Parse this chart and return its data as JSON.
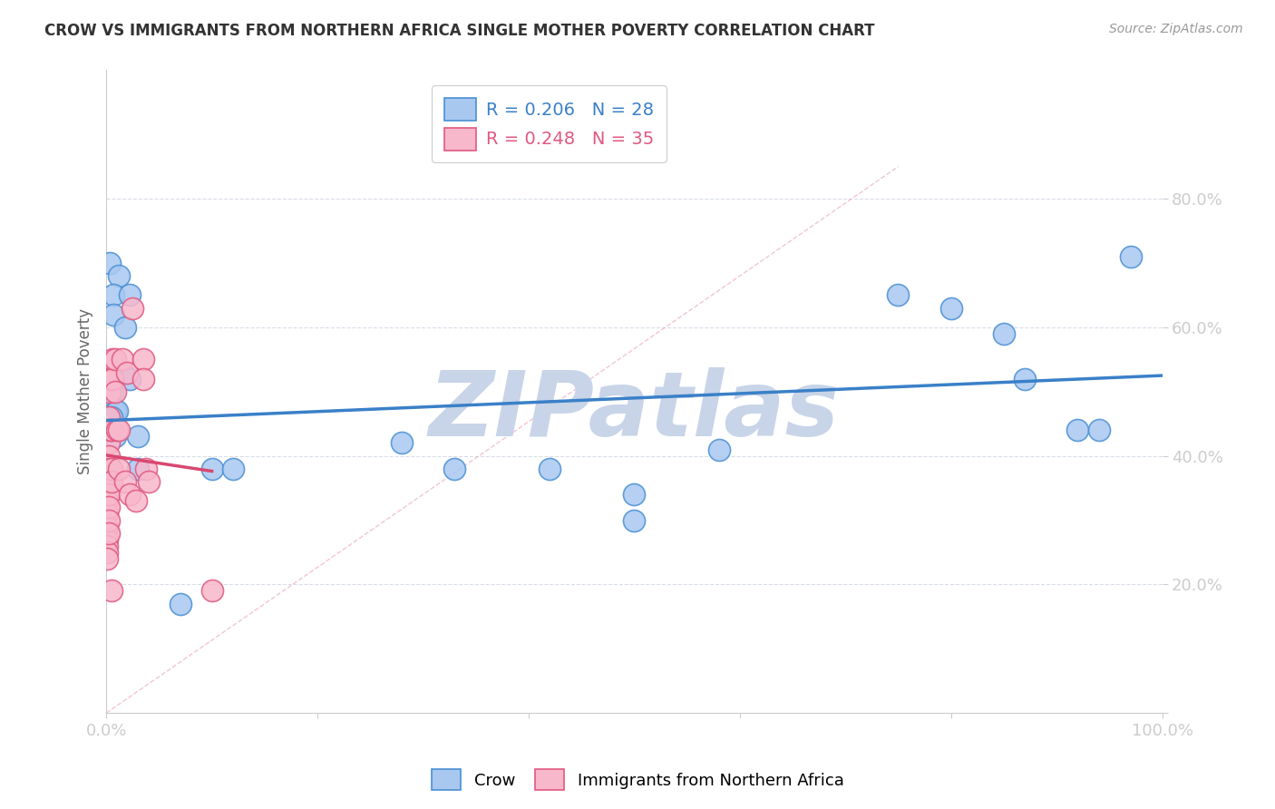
{
  "title": "CROW VS IMMIGRANTS FROM NORTHERN AFRICA SINGLE MOTHER POVERTY CORRELATION CHART",
  "source": "Source: ZipAtlas.com",
  "ylabel": "Single Mother Poverty",
  "xlim": [
    0,
    1.0
  ],
  "ylim": [
    0,
    1.0
  ],
  "background_color": "#ffffff",
  "grid_color": "#d8dce8",
  "watermark": "ZIPatlas",
  "watermark_color": "#c8d4e8",
  "crow_color": "#a8c8f0",
  "crow_edge_color": "#4a8fd4",
  "immigrants_color": "#f8b8cc",
  "immigrants_edge_color": "#e05880",
  "crow_line_color": "#3a80c8",
  "immigrants_line_color": "#d84870",
  "crow_points": [
    [
      0.003,
      0.7
    ],
    [
      0.012,
      0.68
    ],
    [
      0.007,
      0.65
    ],
    [
      0.022,
      0.65
    ],
    [
      0.007,
      0.62
    ],
    [
      0.018,
      0.6
    ],
    [
      0.01,
      0.53
    ],
    [
      0.015,
      0.53
    ],
    [
      0.008,
      0.52
    ],
    [
      0.022,
      0.52
    ],
    [
      0.006,
      0.5
    ],
    [
      0.008,
      0.47
    ],
    [
      0.01,
      0.47
    ],
    [
      0.005,
      0.46
    ],
    [
      0.004,
      0.44
    ],
    [
      0.006,
      0.44
    ],
    [
      0.008,
      0.43
    ],
    [
      0.03,
      0.43
    ],
    [
      0.03,
      0.38
    ],
    [
      0.1,
      0.38
    ],
    [
      0.12,
      0.38
    ],
    [
      0.28,
      0.42
    ],
    [
      0.33,
      0.38
    ],
    [
      0.42,
      0.38
    ],
    [
      0.5,
      0.34
    ],
    [
      0.5,
      0.3
    ],
    [
      0.58,
      0.41
    ],
    [
      0.75,
      0.65
    ],
    [
      0.8,
      0.63
    ],
    [
      0.85,
      0.59
    ],
    [
      0.87,
      0.52
    ],
    [
      0.92,
      0.44
    ],
    [
      0.94,
      0.44
    ],
    [
      0.97,
      0.71
    ],
    [
      0.07,
      0.17
    ]
  ],
  "immigrants_points": [
    [
      0.001,
      0.33
    ],
    [
      0.001,
      0.31
    ],
    [
      0.001,
      0.29
    ],
    [
      0.001,
      0.27
    ],
    [
      0.001,
      0.26
    ],
    [
      0.001,
      0.25
    ],
    [
      0.001,
      0.24
    ],
    [
      0.002,
      0.46
    ],
    [
      0.002,
      0.44
    ],
    [
      0.002,
      0.42
    ],
    [
      0.002,
      0.4
    ],
    [
      0.002,
      0.38
    ],
    [
      0.002,
      0.36
    ],
    [
      0.002,
      0.34
    ],
    [
      0.002,
      0.32
    ],
    [
      0.002,
      0.3
    ],
    [
      0.002,
      0.28
    ],
    [
      0.003,
      0.52
    ],
    [
      0.003,
      0.5
    ],
    [
      0.004,
      0.44
    ],
    [
      0.005,
      0.52
    ],
    [
      0.005,
      0.44
    ],
    [
      0.005,
      0.38
    ],
    [
      0.005,
      0.36
    ],
    [
      0.006,
      0.55
    ],
    [
      0.006,
      0.52
    ],
    [
      0.008,
      0.55
    ],
    [
      0.008,
      0.5
    ],
    [
      0.01,
      0.44
    ],
    [
      0.012,
      0.44
    ],
    [
      0.015,
      0.55
    ],
    [
      0.02,
      0.53
    ],
    [
      0.025,
      0.63
    ],
    [
      0.035,
      0.55
    ],
    [
      0.035,
      0.52
    ],
    [
      0.038,
      0.38
    ],
    [
      0.04,
      0.36
    ],
    [
      0.012,
      0.38
    ],
    [
      0.018,
      0.36
    ],
    [
      0.022,
      0.34
    ],
    [
      0.028,
      0.33
    ],
    [
      0.005,
      0.19
    ],
    [
      0.1,
      0.19
    ]
  ]
}
